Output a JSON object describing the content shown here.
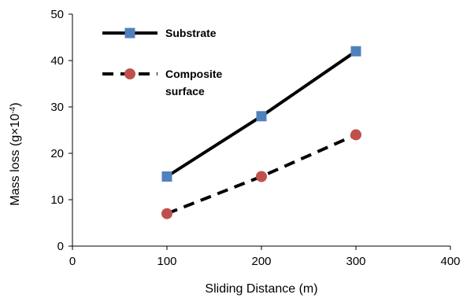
{
  "chart_data": {
    "type": "line",
    "title": "",
    "xlabel": "Sliding Distance (m)",
    "ylabel_main": "Mass loss (g×10",
    "ylabel_sup": "-4",
    "ylabel_tail": ")",
    "xlim": [
      0,
      400
    ],
    "ylim": [
      0,
      50
    ],
    "xticks": [
      "0",
      "100",
      "200",
      "300",
      "400"
    ],
    "yticks": [
      "0",
      "10",
      "20",
      "30",
      "40",
      "50"
    ],
    "grid": false,
    "legend_position": "top-left",
    "series": [
      {
        "name": "Substrate",
        "name_lines": [
          "Substrate"
        ],
        "x": [
          100,
          200,
          300
        ],
        "y": [
          15,
          28,
          42
        ],
        "line_style": "solid",
        "line_color": "#000000",
        "marker": "square",
        "marker_color": "#4F81BD"
      },
      {
        "name": "Composite surface",
        "name_lines": [
          "Composite",
          "surface"
        ],
        "x": [
          100,
          200,
          300
        ],
        "y": [
          7,
          15,
          24
        ],
        "line_style": "dashed",
        "line_color": "#000000",
        "marker": "circle",
        "marker_color": "#C0504D"
      }
    ]
  }
}
